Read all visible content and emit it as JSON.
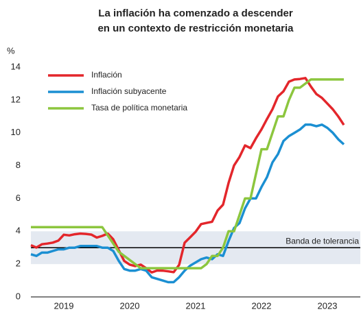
{
  "chart_data": {
    "type": "line",
    "title": "La inflación ha comenzado a descender",
    "subtitle": "en un contexto de restricción monetaria",
    "ylabel": "%",
    "x": [
      2019,
      2019.083,
      2019.167,
      2019.25,
      2019.333,
      2019.417,
      2019.5,
      2019.583,
      2019.667,
      2019.75,
      2019.833,
      2019.917,
      2020,
      2020.083,
      2020.167,
      2020.25,
      2020.333,
      2020.417,
      2020.5,
      2020.583,
      2020.667,
      2020.75,
      2020.833,
      2020.917,
      2021,
      2021.083,
      2021.167,
      2021.25,
      2021.333,
      2021.417,
      2021.5,
      2021.583,
      2021.667,
      2021.75,
      2021.833,
      2021.917,
      2022,
      2022.083,
      2022.167,
      2022.25,
      2022.333,
      2022.417,
      2022.5,
      2022.583,
      2022.667,
      2022.75,
      2022.833,
      2022.917,
      2023,
      2023.083,
      2023.167,
      2023.25,
      2023.333,
      2023.417,
      2023.5,
      2023.583,
      2023.667,
      2023.75
    ],
    "series": [
      {
        "name": "Inflación",
        "color": "#e3262b",
        "values": [
          3.15,
          3.01,
          3.21,
          3.25,
          3.31,
          3.43,
          3.79,
          3.75,
          3.82,
          3.86,
          3.84,
          3.8,
          3.62,
          3.72,
          3.86,
          3.51,
          2.85,
          2.19,
          1.97,
          1.88,
          1.97,
          1.75,
          1.49,
          1.61,
          1.6,
          1.56,
          1.51,
          1.95,
          3.3,
          3.63,
          3.97,
          4.44,
          4.51,
          4.58,
          5.26,
          5.62,
          6.94,
          8.01,
          8.53,
          9.23,
          9.07,
          9.67,
          10.21,
          10.84,
          11.44,
          12.22,
          12.53,
          13.12,
          13.25,
          13.28,
          13.34,
          12.82,
          12.36,
          12.13,
          11.78,
          11.43,
          10.99,
          10.48
        ]
      },
      {
        "name": "Inflación subyacente",
        "color": "#1b8fd2",
        "values": [
          2.6,
          2.5,
          2.7,
          2.7,
          2.8,
          2.9,
          2.9,
          3.0,
          3.0,
          3.1,
          3.1,
          3.1,
          3.1,
          3.0,
          3.0,
          2.8,
          2.2,
          1.7,
          1.6,
          1.6,
          1.7,
          1.6,
          1.2,
          1.1,
          1.0,
          0.9,
          0.9,
          1.2,
          1.6,
          1.9,
          2.1,
          2.3,
          2.4,
          2.3,
          2.6,
          2.5,
          3.4,
          4.2,
          4.5,
          5.4,
          6.0,
          6.0,
          6.7,
          7.3,
          8.2,
          8.7,
          9.5,
          9.8,
          10.0,
          10.2,
          10.5,
          10.5,
          10.4,
          10.5,
          10.3,
          10.0,
          9.6,
          9.3
        ]
      },
      {
        "name": "Tasa de política monetaria",
        "color": "#8cc63e",
        "values": [
          4.25,
          4.25,
          4.25,
          4.25,
          4.25,
          4.25,
          4.25,
          4.25,
          4.25,
          4.25,
          4.25,
          4.25,
          4.25,
          4.25,
          3.75,
          3.25,
          2.75,
          2.5,
          2.25,
          2.0,
          1.75,
          1.75,
          1.75,
          1.75,
          1.75,
          1.75,
          1.75,
          1.75,
          1.75,
          1.75,
          1.75,
          1.75,
          2.0,
          2.5,
          2.5,
          3.0,
          4.0,
          4.0,
          5.0,
          6.0,
          6.0,
          7.5,
          9.0,
          9.0,
          10.0,
          11.0,
          11.0,
          12.0,
          12.75,
          12.75,
          13.0,
          13.25,
          13.25,
          13.25,
          13.25,
          13.25,
          13.25,
          13.25
        ]
      }
    ],
    "xlim": [
      2019,
      2024
    ],
    "xticks": [
      {
        "value": 2019.5,
        "label": "2019"
      },
      {
        "value": 2020.5,
        "label": "2020"
      },
      {
        "value": 2021.5,
        "label": "2021"
      },
      {
        "value": 2022.5,
        "label": "2022"
      },
      {
        "value": 2023.5,
        "label": "2023"
      }
    ],
    "ylim": [
      0,
      14
    ],
    "yticks": [
      0,
      2,
      4,
      6,
      8,
      10,
      12,
      14
    ],
    "band": [
      2,
      4
    ],
    "band_color": "#e4e9f1",
    "reference_line": 3,
    "annotation": "Banda de tolerancia",
    "legend": "upper left"
  }
}
